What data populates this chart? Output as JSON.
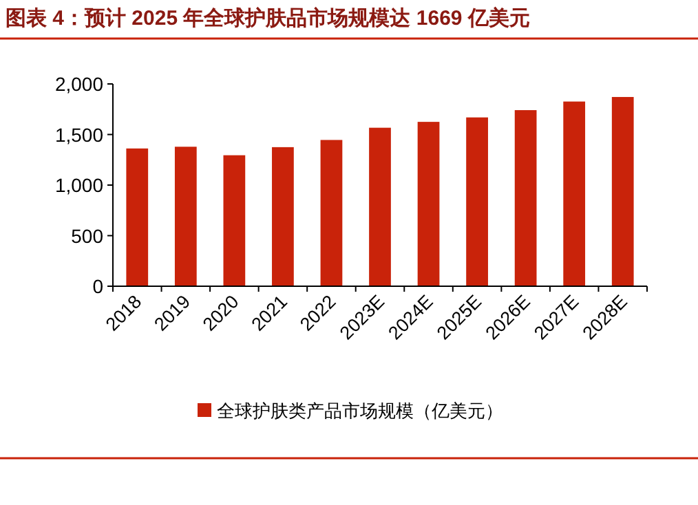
{
  "chart_data": {
    "type": "bar",
    "title": "图表 4：预计 2025 年全球护肤品市场规模达 1669 亿美元",
    "categories": [
      "2018",
      "2019",
      "2020",
      "2021",
      "2022",
      "2023E",
      "2024E",
      "2025E",
      "2026E",
      "2027E",
      "2028E"
    ],
    "series": [
      {
        "name": "全球护肤类产品市场规模（亿美元）",
        "color": "#c9230a",
        "values": [
          1362,
          1379,
          1295,
          1375,
          1446,
          1567,
          1625,
          1669,
          1741,
          1826,
          1871
        ]
      }
    ],
    "ylim": [
      0,
      2000
    ],
    "yticks": [
      0,
      {
        "value": 500,
        "label": "500"
      },
      {
        "value": 1000,
        "label": "1,000"
      },
      {
        "value": 1500,
        "label": "1,500"
      },
      {
        "value": 2000,
        "label": "2,000"
      }
    ],
    "grid": false,
    "legend": "bottom"
  }
}
